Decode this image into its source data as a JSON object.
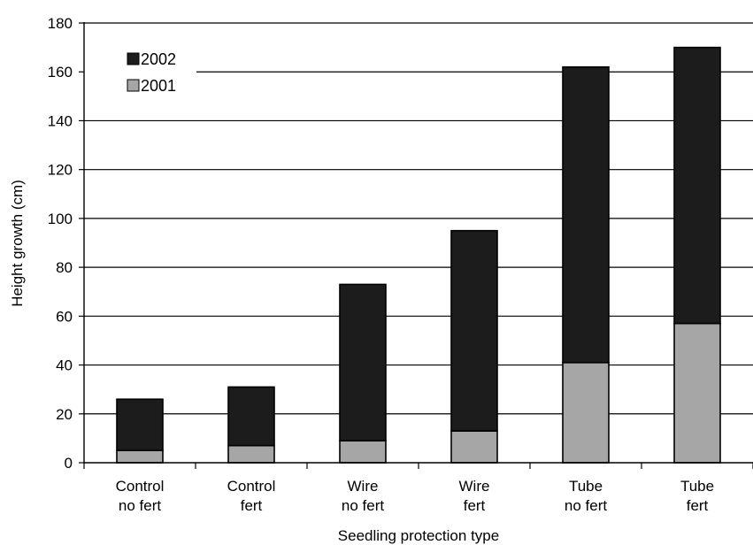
{
  "chart_data": {
    "type": "bar",
    "stacked": true,
    "categories": [
      [
        "Control",
        "no fert"
      ],
      [
        "Control",
        "fert"
      ],
      [
        "Wire",
        "no fert"
      ],
      [
        "Wire",
        "fert"
      ],
      [
        "Tube",
        "no fert"
      ],
      [
        "Tube",
        "fert"
      ]
    ],
    "series": [
      {
        "name": "2001",
        "color": "#a6a6a6",
        "values": [
          5,
          7,
          9,
          13,
          41,
          57
        ]
      },
      {
        "name": "2002",
        "color": "#1c1c1c",
        "values": [
          21,
          24,
          64,
          82,
          121,
          113
        ]
      }
    ],
    "totals": [
      26,
      31,
      73,
      95,
      162,
      170
    ],
    "xlabel": "Seedling protection type",
    "ylabel": "Height growth (cm)",
    "ylim": [
      0,
      180
    ],
    "yticks": [
      0,
      20,
      40,
      60,
      80,
      100,
      120,
      140,
      160,
      180
    ],
    "grid": true,
    "legend": {
      "placement": "top-left",
      "order": [
        "2002",
        "2001"
      ]
    }
  }
}
